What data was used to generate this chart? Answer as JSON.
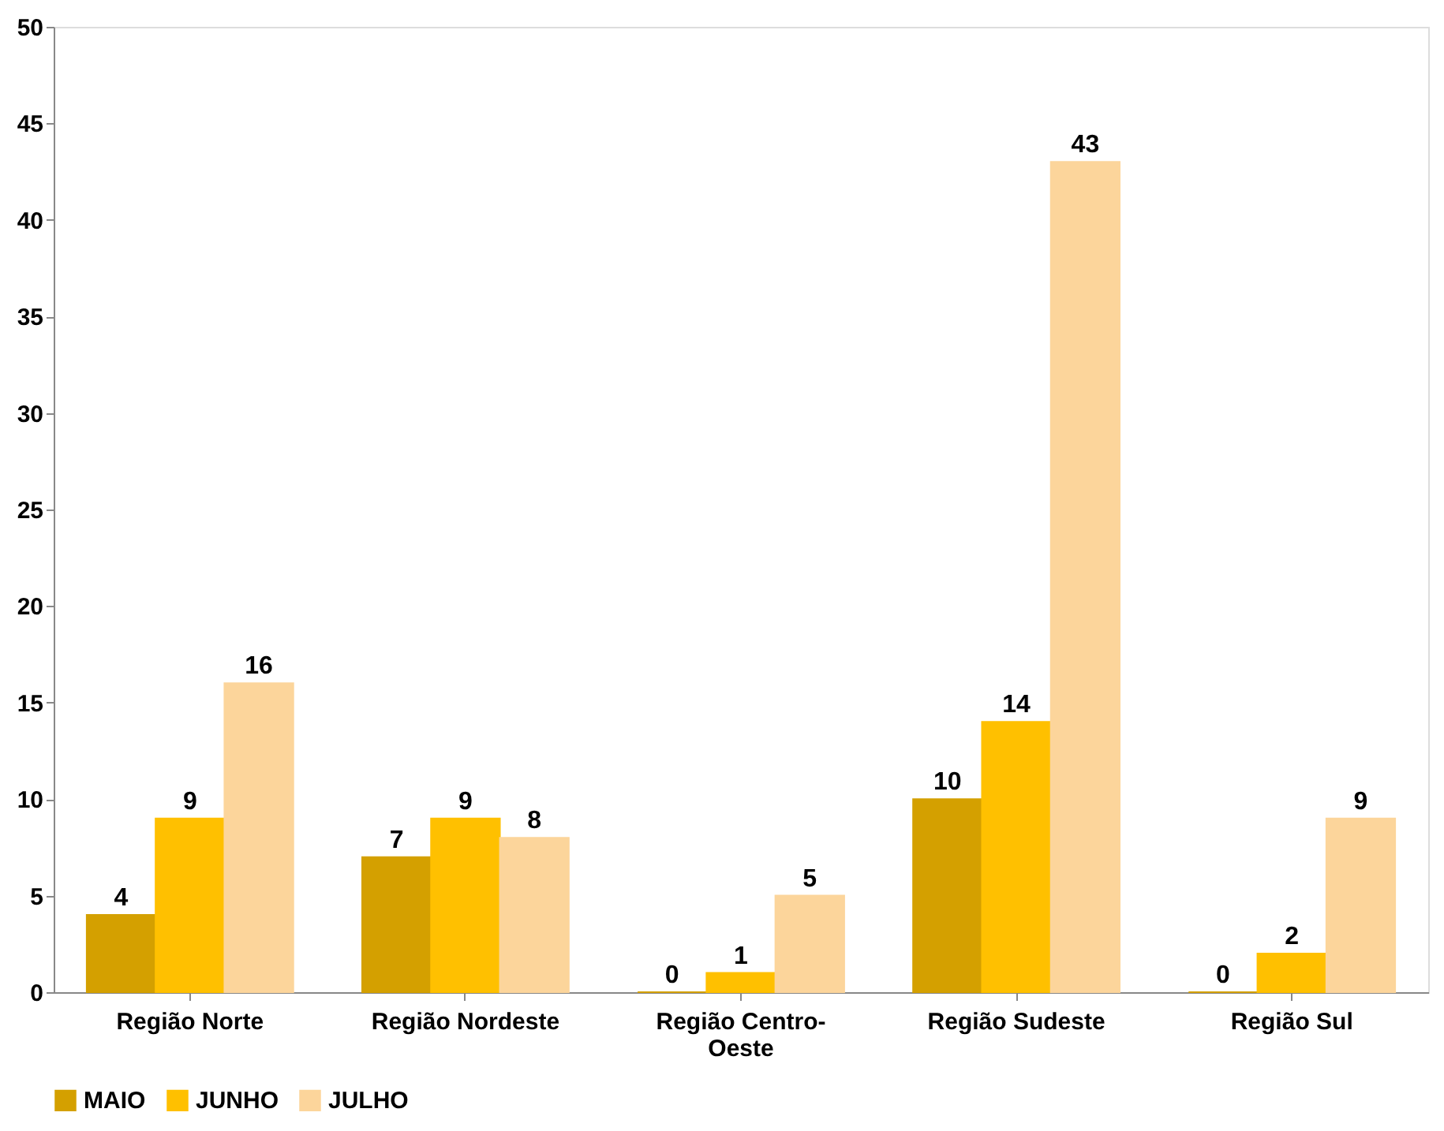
{
  "chart_data": {
    "type": "bar",
    "categories": [
      "Região Norte",
      "Região Nordeste",
      "Região Centro-Oeste",
      "Região Sudeste",
      "Região Sul"
    ],
    "series": [
      {
        "name": "MAIO",
        "color": "#d4a000",
        "values": [
          4,
          7,
          0,
          10,
          0
        ]
      },
      {
        "name": "JUNHO",
        "color": "#ffc000",
        "values": [
          9,
          9,
          1,
          14,
          2
        ]
      },
      {
        "name": "JULHO",
        "color": "#fcd59b",
        "values": [
          16,
          8,
          5,
          43,
          9
        ]
      }
    ],
    "ylim": [
      0,
      50
    ],
    "yticks": [
      0,
      5,
      10,
      15,
      20,
      25,
      30,
      35,
      40,
      45,
      50
    ],
    "grid": false,
    "legend": "bottom",
    "data_labels": true
  }
}
